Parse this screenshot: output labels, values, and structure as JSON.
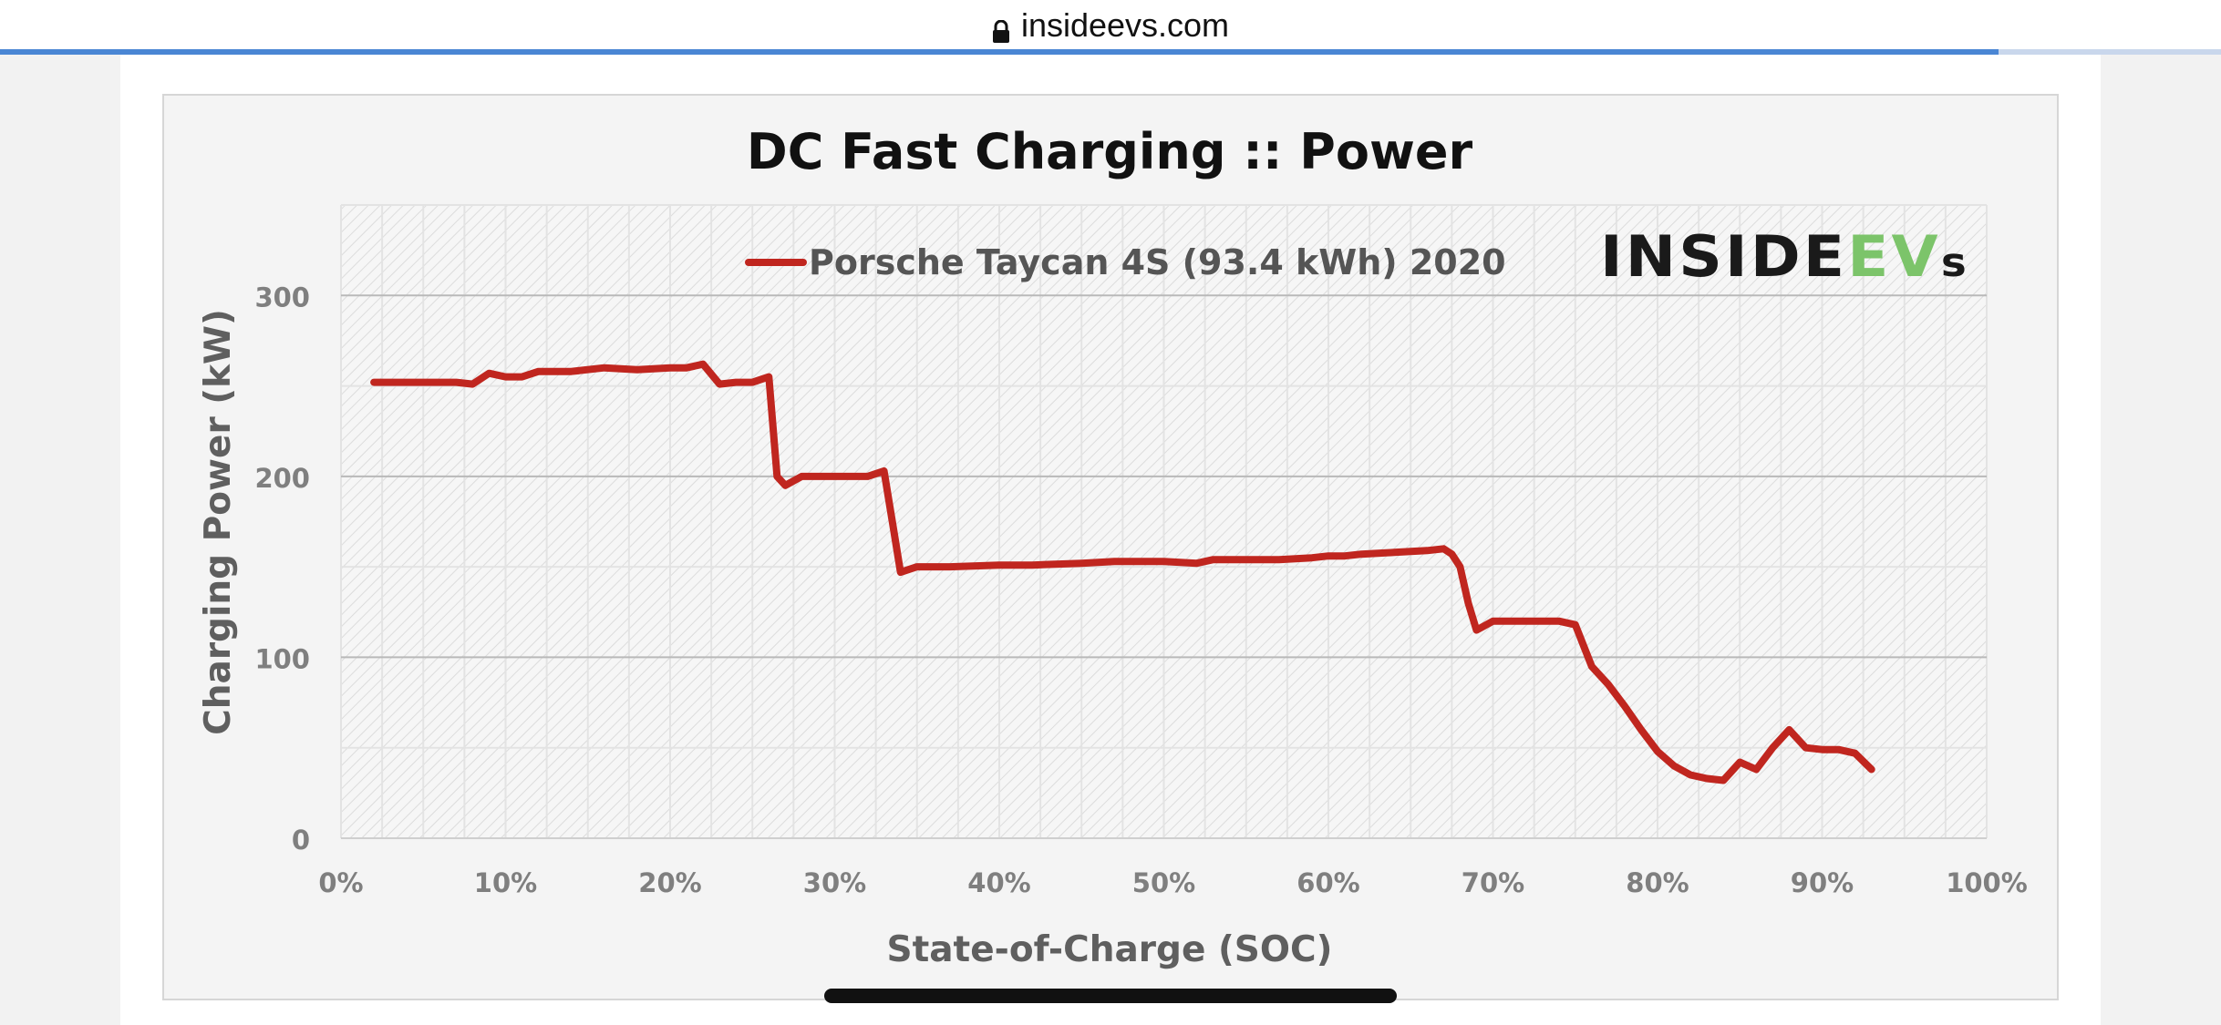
{
  "browser": {
    "url": "insideevs.com",
    "progress_fraction": 0.9,
    "accent_color": "#4a86d4"
  },
  "chart_data": {
    "type": "line",
    "title": "DC Fast Charging :: Power",
    "xlabel": "State-of-Charge  (SOC)",
    "ylabel": "Charging Power (kW)",
    "xlim": [
      0,
      100
    ],
    "ylim": [
      0,
      350
    ],
    "x_ticks": [
      0,
      10,
      20,
      30,
      40,
      50,
      60,
      70,
      80,
      90,
      100
    ],
    "x_tick_labels": [
      "0%",
      "10%",
      "20%",
      "30%",
      "40%",
      "50%",
      "60%",
      "70%",
      "80%",
      "90%",
      "100%"
    ],
    "y_ticks": [
      0,
      100,
      200,
      300
    ],
    "y_tick_labels": [
      "0",
      "100",
      "200",
      "300"
    ],
    "grid": true,
    "legend_position": "top-center",
    "brand_logo": {
      "text": "INSIDEEVs",
      "part1": "INSIDE",
      "part2": "EV",
      "part3": "s",
      "color1": "#1a1a1a",
      "color2": "#7cc46a"
    },
    "series": [
      {
        "name": "Porsche Taycan 4S (93.4 kWh) 2020",
        "color": "#c0261f",
        "x": [
          2,
          5,
          7,
          8,
          9,
          10,
          11,
          12,
          14,
          16,
          18,
          20,
          21,
          22,
          23,
          24,
          25,
          26,
          26.5,
          27,
          28,
          30,
          32,
          33,
          33.5,
          34,
          35,
          37,
          40,
          42,
          45,
          47,
          50,
          52,
          53,
          55,
          57,
          59,
          60,
          61,
          62,
          64,
          66,
          67,
          67.5,
          68,
          68.5,
          69,
          70,
          72,
          74,
          75,
          76,
          77,
          78,
          79,
          80,
          81,
          82,
          83,
          84,
          85,
          86,
          87,
          88,
          89,
          90,
          91,
          92,
          93
        ],
        "y": [
          252,
          252,
          252,
          251,
          257,
          255,
          255,
          258,
          258,
          260,
          259,
          260,
          260,
          262,
          251,
          252,
          252,
          255,
          200,
          195,
          200,
          200,
          200,
          203,
          175,
          147,
          150,
          150,
          151,
          151,
          152,
          153,
          153,
          152,
          154,
          154,
          154,
          155,
          156,
          156,
          157,
          158,
          159,
          160,
          157,
          150,
          130,
          115,
          120,
          120,
          120,
          118,
          95,
          85,
          73,
          60,
          48,
          40,
          35,
          33,
          32,
          42,
          38,
          50,
          60,
          50,
          49,
          49,
          47,
          38
        ]
      }
    ]
  }
}
